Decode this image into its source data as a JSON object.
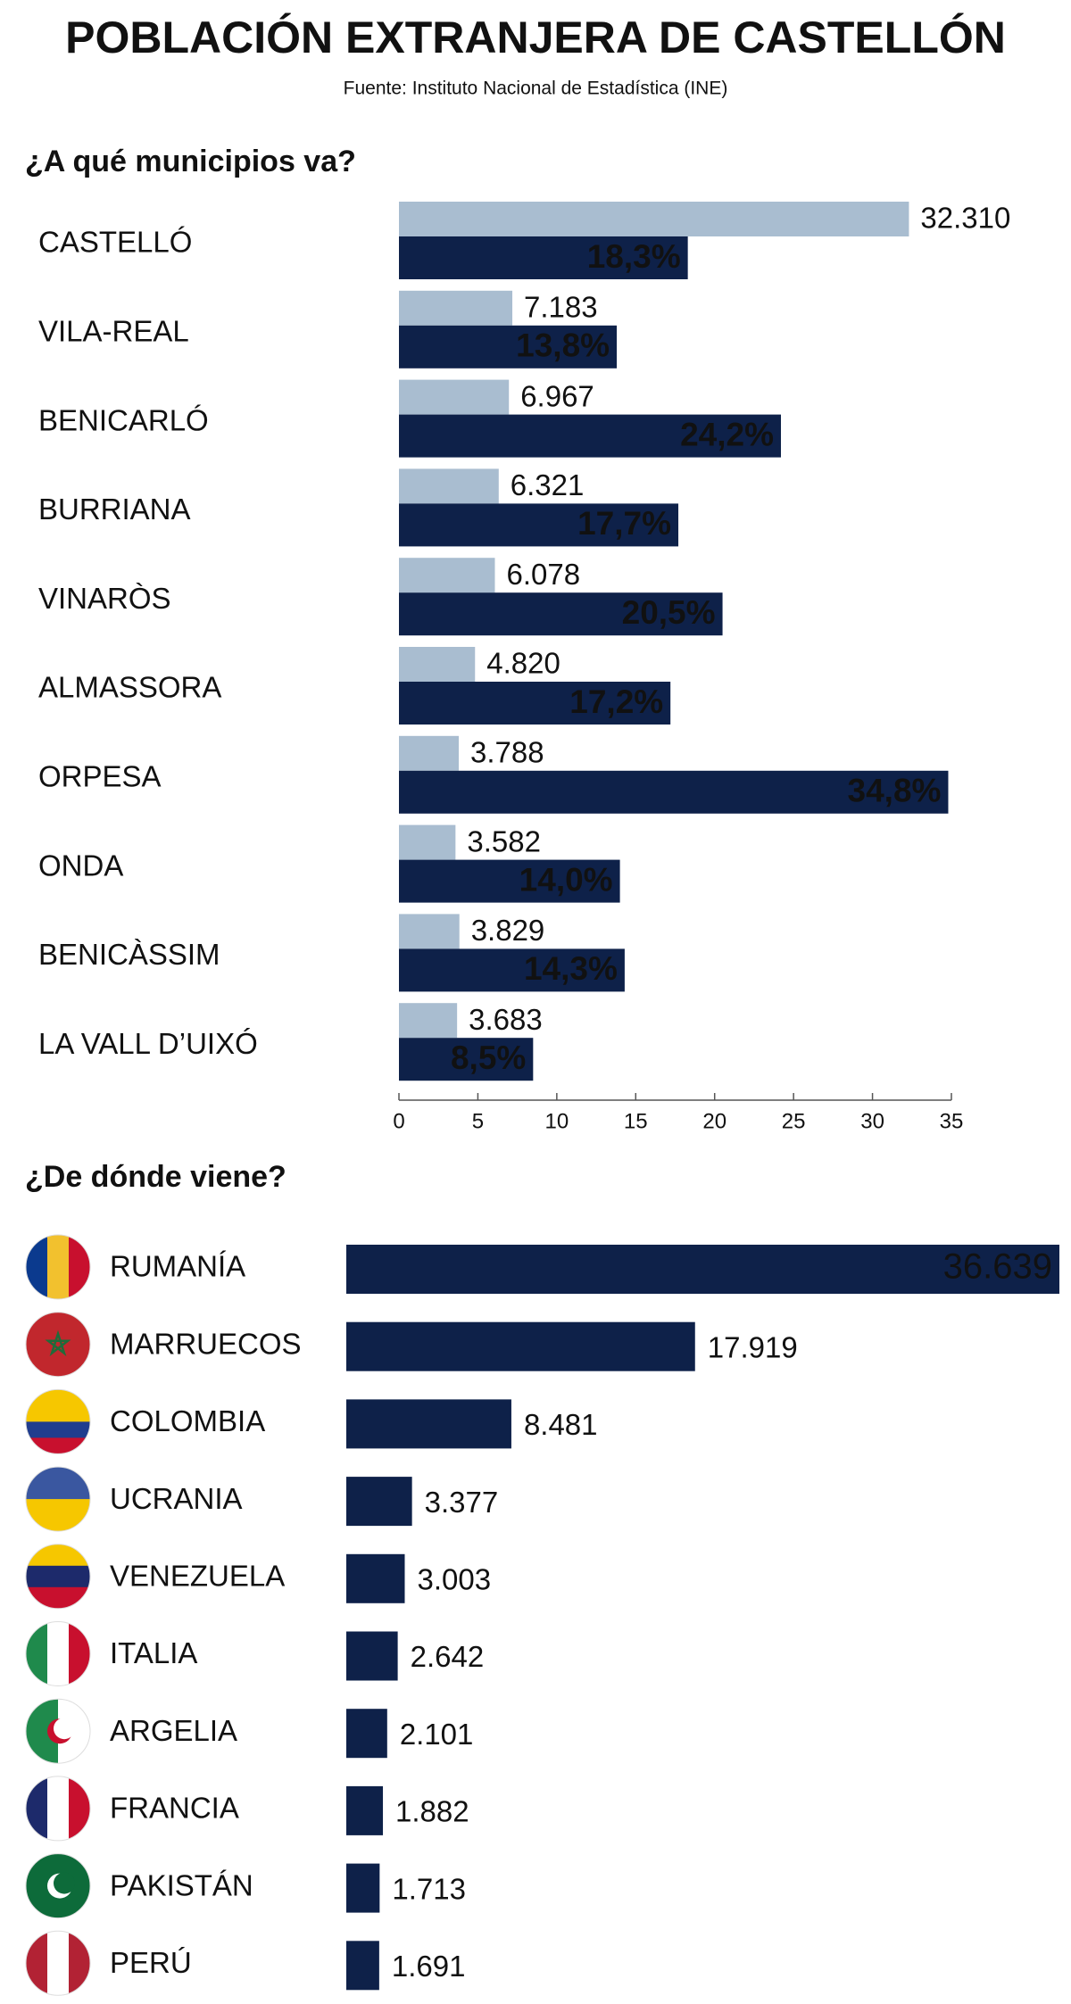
{
  "title": "POBLACIÓN EXTRANJERA DE CASTELLÓN",
  "subtitle": "Fuente: Instituto Nacional de Estadística (INE)",
  "chart_data": [
    {
      "type": "grouped-hbar",
      "title": "¿A qué municipios va?",
      "categories": [
        "CASTELLÓ",
        "VILA-REAL",
        "BENICARLÓ",
        "BURRIANA",
        "VINARÒS",
        "ALMASSORA",
        "ORPESA",
        "ONDA",
        "BENICÀSSIM",
        "LA VALL D’UIXÓ"
      ],
      "series": [
        {
          "color": "#a9bdd0",
          "values": [
            32.31,
            7.183,
            6.967,
            6.321,
            6.078,
            4.82,
            3.788,
            3.582,
            3.829,
            3.683
          ],
          "value_labels": [
            "32.310",
            "7.183",
            "6.967",
            "6.321",
            "6.078",
            "4.820",
            "3.788",
            "3.582",
            "3.829",
            "3.683"
          ]
        },
        {
          "color": "#0e2149",
          "values": [
            18.3,
            13.8,
            24.2,
            17.7,
            20.5,
            17.2,
            34.8,
            14.0,
            14.3,
            8.5
          ],
          "value_labels": [
            "18,3%",
            "13,8%",
            "24,2%",
            "17,7%",
            "20,5%",
            "17,2%",
            "34,8%",
            "14,0%",
            "14,3%",
            "8,5%"
          ]
        }
      ],
      "xlim": [
        0,
        35
      ],
      "xticks": [
        0,
        5,
        10,
        15,
        20,
        25,
        30,
        35
      ]
    },
    {
      "type": "hbar",
      "title": "¿De dónde viene?",
      "categories": [
        "RUMANÍA",
        "MARRUECOS",
        "COLOMBIA",
        "UCRANIA",
        "VENEZUELA",
        "ITALIA",
        "ARGELIA",
        "FRANCIA",
        "PAKISTÁN",
        "PERÚ"
      ],
      "values": [
        36639,
        17919,
        8481,
        3377,
        3003,
        2642,
        2101,
        1882,
        1713,
        1691
      ],
      "value_labels": [
        "36.639",
        "17.919",
        "8.481",
        "3.377",
        "3.003",
        "2.642",
        "2.101",
        "1.882",
        "1.713",
        "1.691"
      ],
      "color": "#0e2149"
    }
  ]
}
